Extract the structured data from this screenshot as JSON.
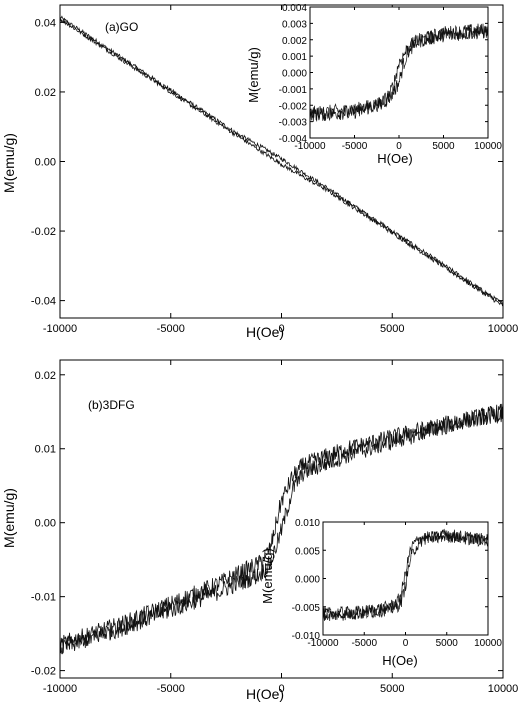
{
  "chart_data": [
    {
      "id": "a-main",
      "type": "line",
      "annotation": "(a)GO",
      "xlabel": "H(Oe)",
      "ylabel": "M(emu/g)",
      "xlim": [
        -10000,
        10000
      ],
      "ylim": [
        -0.045,
        0.045
      ],
      "xticks": [
        -10000,
        -5000,
        0,
        5000,
        10000
      ],
      "yticks": [
        -0.04,
        -0.02,
        0.0,
        0.02,
        0.04
      ],
      "ytick_decimals": 2,
      "series": [
        {
          "x": [
            -10000,
            -5000,
            -2000,
            -1000,
            0,
            1000,
            2000,
            5000,
            10000
          ],
          "y": [
            0.0415,
            0.0205,
            0.008,
            0.0045,
            0.0008,
            -0.0033,
            -0.0074,
            -0.02,
            -0.041
          ]
        },
        {
          "x": [
            -10000,
            -5000,
            -2000,
            -1000,
            0,
            1000,
            2000,
            5000,
            10000
          ],
          "y": [
            0.041,
            0.02,
            0.0074,
            0.0033,
            -0.0008,
            -0.0045,
            -0.008,
            -0.0205,
            -0.0415
          ]
        }
      ],
      "noise": 0.0006
    },
    {
      "id": "a-inset",
      "type": "line",
      "xlabel": "H(Oe)",
      "ylabel": "M(emu/g)",
      "xlim": [
        -10000,
        10000
      ],
      "ylim": [
        -0.004,
        0.004
      ],
      "xticks": [
        -10000,
        -5000,
        0,
        5000,
        10000
      ],
      "yticks": [
        -0.004,
        -0.003,
        -0.002,
        -0.001,
        0.0,
        0.001,
        0.002,
        0.003,
        0.004
      ],
      "ytick_decimals": 3,
      "series": [
        {
          "x": [
            -10000,
            -5000,
            -2000,
            -1000,
            0,
            500,
            1000,
            2000,
            5000,
            10000
          ],
          "y": [
            -0.0025,
            -0.0023,
            -0.0019,
            -0.0015,
            -0.0006,
            0.0005,
            0.0013,
            0.0019,
            0.0024,
            0.0026
          ]
        },
        {
          "x": [
            -10000,
            -5000,
            -2000,
            -1000,
            -500,
            0,
            1000,
            2000,
            5000,
            10000
          ],
          "y": [
            -0.0026,
            -0.0024,
            -0.0019,
            -0.0013,
            -0.0005,
            0.0006,
            0.0015,
            0.0019,
            0.0023,
            0.0025
          ]
        }
      ],
      "noise": 0.00045
    },
    {
      "id": "b-main",
      "type": "line",
      "annotation": "(b)3DFG",
      "xlabel": "H(Oe)",
      "ylabel": "M(emu/g)",
      "xlim": [
        -10000,
        10000
      ],
      "ylim": [
        -0.021,
        0.022
      ],
      "xticks": [
        -10000,
        -5000,
        0,
        5000,
        10000
      ],
      "yticks": [
        -0.02,
        -0.01,
        0.0,
        0.01,
        0.02
      ],
      "ytick_decimals": 2,
      "series": [
        {
          "x": [
            -10000,
            -7000,
            -5000,
            -3000,
            -1000,
            -500,
            0,
            500,
            1000,
            3000,
            5000,
            7000,
            10000
          ],
          "y": [
            -0.0165,
            -0.0135,
            -0.011,
            -0.0085,
            -0.0055,
            -0.0035,
            0.003,
            0.0062,
            0.0078,
            0.01,
            0.0115,
            0.013,
            0.015
          ]
        },
        {
          "x": [
            -10000,
            -7000,
            -5000,
            -3000,
            -1000,
            -500,
            0,
            500,
            1000,
            3000,
            5000,
            7000,
            10000
          ],
          "y": [
            -0.017,
            -0.014,
            -0.0118,
            -0.0095,
            -0.007,
            -0.0055,
            -0.001,
            0.0045,
            0.0068,
            0.0092,
            0.011,
            0.0128,
            0.0148
          ]
        }
      ],
      "noise": 0.0012
    },
    {
      "id": "b-inset",
      "type": "line",
      "xlabel": "H(Oe)",
      "ylabel": "M(emu/g)",
      "xlim": [
        -10000,
        10000
      ],
      "ylim": [
        -0.01,
        0.01
      ],
      "xticks": [
        -10000,
        -5000,
        0,
        5000,
        10000
      ],
      "yticks": [
        -0.01,
        -0.005,
        0.0,
        0.005,
        0.01
      ],
      "ytick_decimals": 3,
      "series": [
        {
          "x": [
            -10000,
            -5000,
            -2000,
            -1000,
            -500,
            0,
            500,
            1000,
            2000,
            5000,
            10000
          ],
          "y": [
            -0.0062,
            -0.0058,
            -0.005,
            -0.0042,
            -0.0025,
            0.001,
            0.0045,
            0.0062,
            0.0072,
            0.0075,
            0.0065
          ]
        },
        {
          "x": [
            -10000,
            -5000,
            -2000,
            -1000,
            -500,
            0,
            500,
            1000,
            2000,
            5000,
            10000
          ],
          "y": [
            -0.0066,
            -0.0062,
            -0.0055,
            -0.005,
            -0.004,
            -0.0012,
            0.0028,
            0.005,
            0.0068,
            0.0078,
            0.0068
          ]
        }
      ],
      "noise": 0.0011
    }
  ]
}
